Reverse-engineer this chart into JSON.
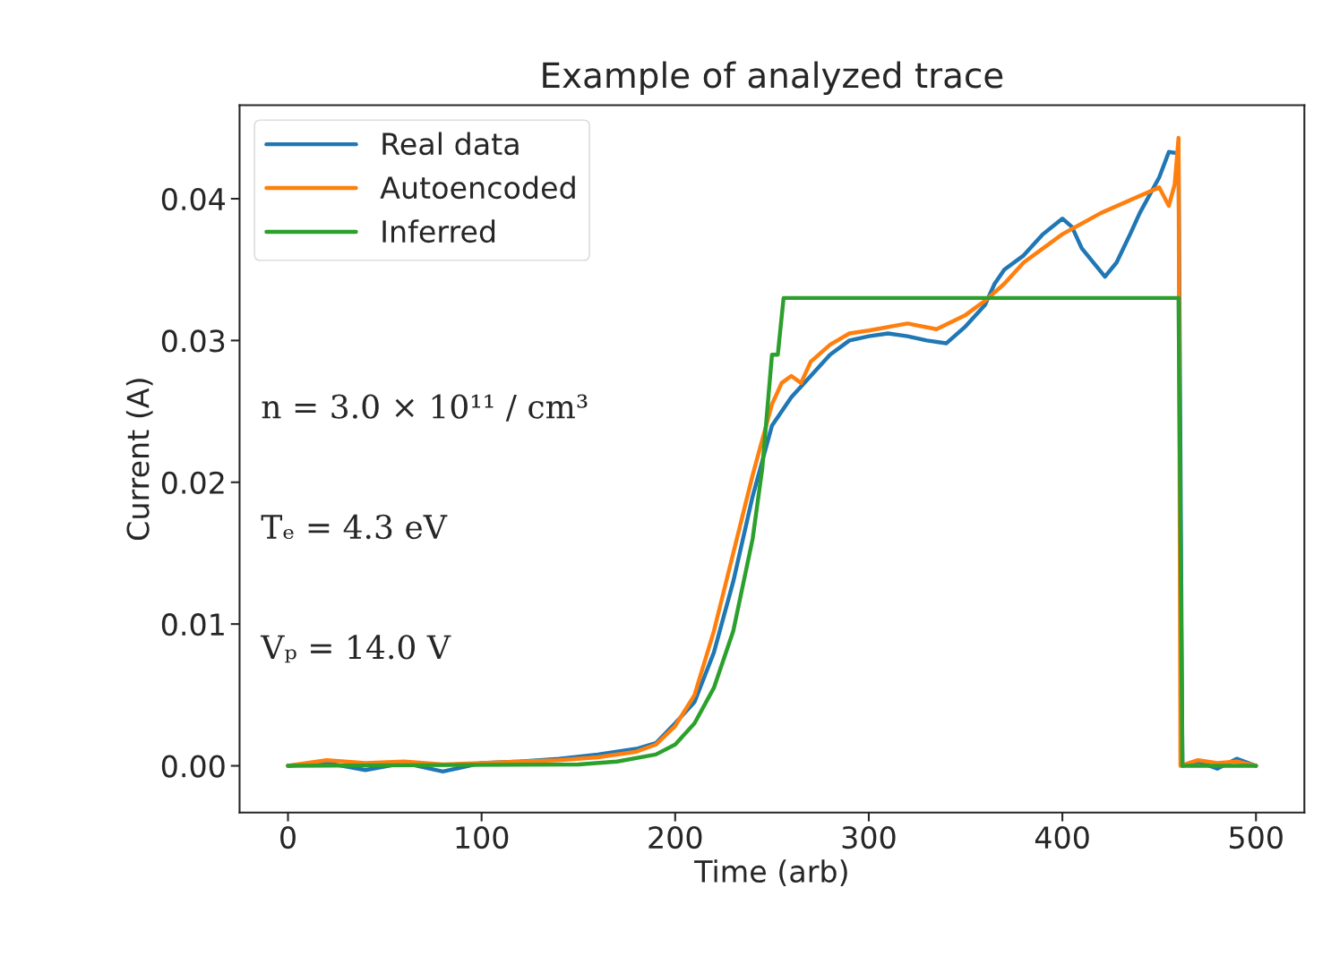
{
  "chart_data": {
    "type": "line",
    "title": "Example of analyzed trace",
    "xlabel": "Time (arb)",
    "ylabel": "Current (A)",
    "xlim": [
      -25,
      525
    ],
    "ylim": [
      -0.0033,
      0.0466
    ],
    "xticks": [
      0,
      100,
      200,
      300,
      400,
      500
    ],
    "yticks": [
      {
        "value": 0,
        "label": "0.00"
      },
      {
        "value": 0.01,
        "label": "0.01"
      },
      {
        "value": 0.02,
        "label": "0.02"
      },
      {
        "value": 0.03,
        "label": "0.03"
      },
      {
        "value": 0.04,
        "label": "0.04"
      }
    ],
    "grid": false,
    "legend": "top left",
    "line_style": "solid",
    "marker": "none",
    "annotations": [
      "n = 3.0 × 10¹¹ / cm³",
      "Tₑ = 4.3 eV",
      "Vₚ = 14.0 V"
    ],
    "series": [
      {
        "name": "Real data",
        "color": "#1f77b4",
        "x": [
          0,
          20,
          40,
          60,
          80,
          100,
          120,
          140,
          160,
          180,
          190,
          200,
          210,
          220,
          230,
          240,
          245,
          250,
          260,
          270,
          280,
          290,
          300,
          310,
          320,
          330,
          340,
          350,
          360,
          365,
          370,
          380,
          390,
          400,
          405,
          410,
          422,
          428,
          435,
          440,
          450,
          455,
          460,
          462,
          470,
          480,
          490,
          500
        ],
        "values": [
          0,
          0.0002,
          -0.0003,
          0.0002,
          -0.0004,
          0.0002,
          0.0003,
          0.0005,
          0.0008,
          0.0012,
          0.0016,
          0.003,
          0.0045,
          0.008,
          0.013,
          0.019,
          0.0215,
          0.024,
          0.026,
          0.0275,
          0.029,
          0.03,
          0.0303,
          0.0305,
          0.0303,
          0.03,
          0.0298,
          0.031,
          0.0325,
          0.034,
          0.035,
          0.036,
          0.0375,
          0.0386,
          0.038,
          0.0365,
          0.0345,
          0.0355,
          0.0375,
          0.039,
          0.0415,
          0.0433,
          0.0432,
          0,
          0.0003,
          -0.0002,
          0.0005,
          0
        ]
      },
      {
        "name": "Autoencoded",
        "color": "#ff7f0e",
        "x": [
          0,
          20,
          40,
          60,
          80,
          100,
          120,
          140,
          160,
          180,
          190,
          200,
          210,
          220,
          230,
          240,
          250,
          255,
          260,
          265,
          270,
          280,
          290,
          300,
          320,
          335,
          350,
          360,
          370,
          380,
          400,
          420,
          440,
          450,
          455,
          458,
          460,
          461,
          470,
          480,
          490,
          500
        ],
        "values": [
          0,
          0.0004,
          0.0002,
          0.0003,
          0.0001,
          0.0002,
          0.0003,
          0.0004,
          0.0006,
          0.001,
          0.0015,
          0.0028,
          0.005,
          0.0095,
          0.015,
          0.0205,
          0.0255,
          0.027,
          0.0275,
          0.027,
          0.0285,
          0.0297,
          0.0305,
          0.0307,
          0.0312,
          0.0308,
          0.0318,
          0.0328,
          0.034,
          0.0355,
          0.0375,
          0.039,
          0.0402,
          0.0408,
          0.0395,
          0.041,
          0.0443,
          0,
          0.0004,
          0.0002,
          0.0003,
          0
        ]
      },
      {
        "name": "Inferred",
        "color": "#2ca02c",
        "x": [
          0,
          150,
          170,
          190,
          200,
          210,
          220,
          230,
          240,
          245,
          250,
          253,
          256,
          460,
          462,
          500
        ],
        "values": [
          0,
          0.0001,
          0.0003,
          0.0008,
          0.0015,
          0.003,
          0.0055,
          0.0095,
          0.016,
          0.021,
          0.029,
          0.029,
          0.033,
          0.033,
          0,
          0
        ]
      }
    ]
  }
}
